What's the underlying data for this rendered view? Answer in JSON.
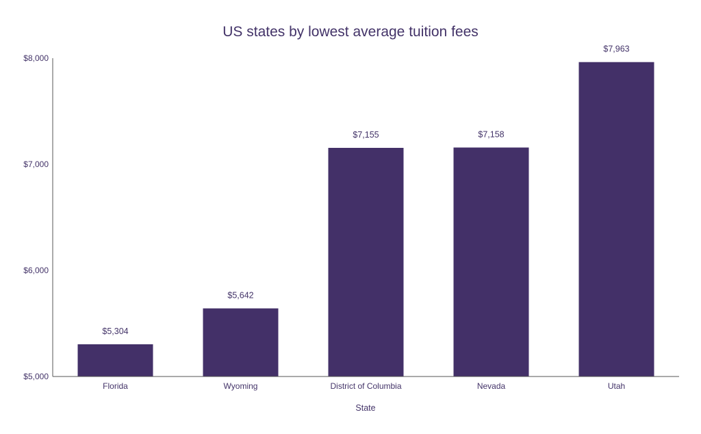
{
  "chart_data": {
    "type": "bar",
    "title": "US states by lowest average tuition fees",
    "xlabel": "State",
    "ylabel": "",
    "categories": [
      "Florida",
      "Wyoming",
      "District of Columbia",
      "Nevada",
      "Utah"
    ],
    "values": [
      5304,
      5642,
      7155,
      7158,
      7963
    ],
    "value_labels": [
      "$5,304",
      "$5,642",
      "$7,155",
      "$7,158",
      "$7,963"
    ],
    "ylim": [
      5000,
      8000
    ],
    "yticks": [
      5000,
      6000,
      7000,
      8000
    ],
    "ytick_labels": [
      "$5,000",
      "$6,000",
      "$7,000",
      "$8,000"
    ],
    "grid": false,
    "legend": "none",
    "bar_color": "#433068"
  }
}
